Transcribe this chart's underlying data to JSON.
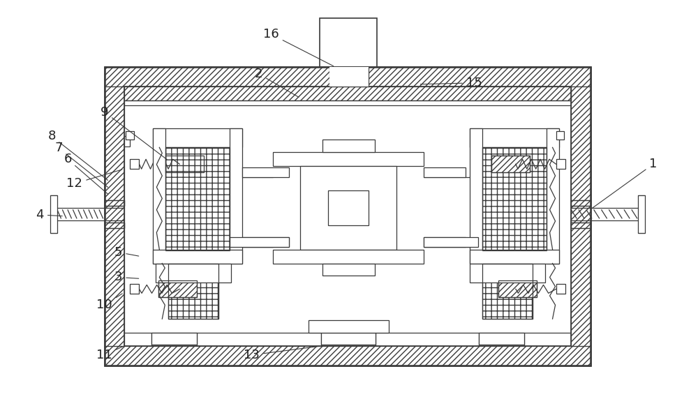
{
  "bg_color": "#ffffff",
  "lc": "#3a3a3a",
  "fig_width": 10.0,
  "fig_height": 5.72
}
